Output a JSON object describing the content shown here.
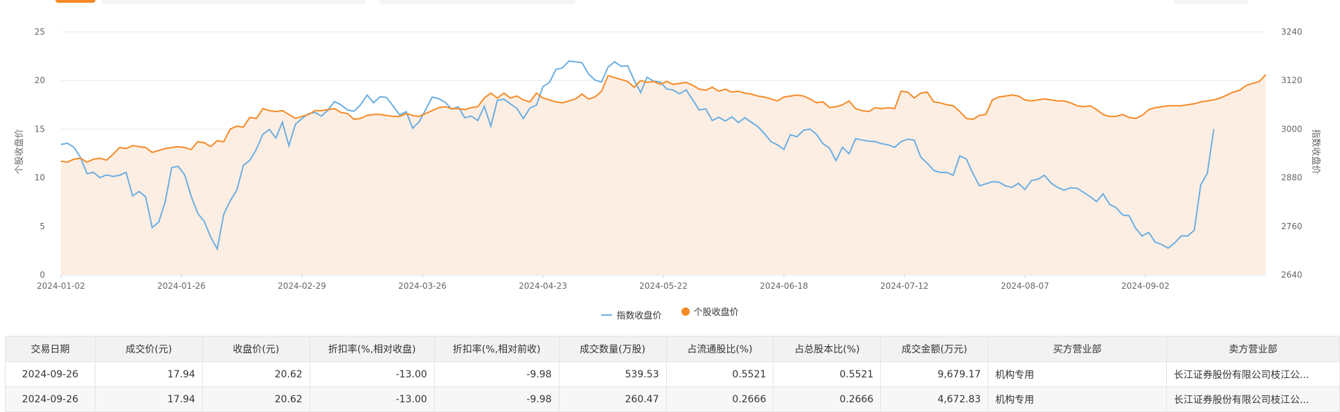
{
  "chart_data": {
    "type": "area",
    "x_labels": [
      "2024-01-02",
      "2024-01-26",
      "2024-02-29",
      "2024-03-26",
      "2024-04-23",
      "2024-05-22",
      "2024-06-18",
      "2024-07-12",
      "2024-08-07",
      "2024-09-02"
    ],
    "ylabel_left": "个股收盘价",
    "ylabel_right": "指数收盘价",
    "ylim_left": [
      0,
      25
    ],
    "ylim_right": [
      2640,
      3240
    ],
    "yticks_left": [
      "0",
      "5",
      "10",
      "15",
      "20",
      "25"
    ],
    "yticks_right": [
      "2640",
      "2760",
      "2880",
      "3000",
      "3120",
      "3240"
    ],
    "legend_position": "bottom-center",
    "series": [
      {
        "name": "指数收盘价",
        "axis": "right",
        "color": "#6aaee2",
        "values": [
          2962,
          2965,
          2955,
          2930,
          2890,
          2893,
          2880,
          2887,
          2883,
          2886,
          2893,
          2835,
          2846,
          2833,
          2757,
          2770,
          2820,
          2905,
          2908,
          2887,
          2834,
          2792,
          2772,
          2733,
          2704,
          2790,
          2823,
          2849,
          2910,
          2923,
          2950,
          2987,
          2999,
          2978,
          3017,
          2959,
          3012,
          3026,
          3038,
          3041,
          3032,
          3047,
          3068,
          3060,
          3047,
          3044,
          3060,
          3084,
          3065,
          3080,
          3078,
          3057,
          3035,
          3043,
          3002,
          3018,
          3048,
          3079,
          3075,
          3066,
          3049,
          3055,
          3028,
          3032,
          3021,
          3056,
          3007,
          3071,
          3074,
          3062,
          3051,
          3026,
          3052,
          3059,
          3105,
          3115,
          3147,
          3151,
          3168,
          3166,
          3164,
          3136,
          3121,
          3116,
          3153,
          3166,
          3155,
          3156,
          3121,
          3090,
          3128,
          3118,
          3116,
          3099,
          3096,
          3087,
          3097,
          3072,
          3047,
          3050,
          3021,
          3029,
          3020,
          3030,
          3016,
          3028,
          3017,
          3006,
          2989,
          2969,
          2961,
          2950,
          2986,
          2981,
          2997,
          3000,
          2987,
          2964,
          2953,
          2922,
          2955,
          2939,
          2976,
          2973,
          2970,
          2969,
          2964,
          2961,
          2955,
          2969,
          2975,
          2973,
          2931,
          2916,
          2898,
          2893,
          2893,
          2886,
          2934,
          2926,
          2891,
          2860,
          2865,
          2870,
          2869,
          2860,
          2856,
          2866,
          2851,
          2873,
          2876,
          2886,
          2867,
          2856,
          2849,
          2855,
          2854,
          2844,
          2833,
          2821,
          2840,
          2814,
          2806,
          2788,
          2786,
          2755,
          2736,
          2745,
          2721,
          2715,
          2706,
          2719,
          2736,
          2736,
          2750,
          2862,
          2891,
          3000
        ]
      },
      {
        "name": "个股收盘价",
        "axis": "left",
        "color": "#f58a26",
        "fill": "#fdeee3",
        "values": [
          11.7,
          11.6,
          11.9,
          12.0,
          11.6,
          11.9,
          12.0,
          11.8,
          12.4,
          13.1,
          13.0,
          13.3,
          13.2,
          13.1,
          12.6,
          12.8,
          13.0,
          13.1,
          13.2,
          13.1,
          12.9,
          13.7,
          13.6,
          13.2,
          13.8,
          13.7,
          15.0,
          15.3,
          15.2,
          16.2,
          16.1,
          17.1,
          16.9,
          16.8,
          16.9,
          16.5,
          16.1,
          16.3,
          16.5,
          16.9,
          16.9,
          17.0,
          17.1,
          16.7,
          16.6,
          16.0,
          16.1,
          16.4,
          16.5,
          16.5,
          16.4,
          16.3,
          16.3,
          16.6,
          16.4,
          16.3,
          16.6,
          16.9,
          17.2,
          17.3,
          17.1,
          17.1,
          17.0,
          17.2,
          17.3,
          18.2,
          18.7,
          18.2,
          18.7,
          18.2,
          18.4,
          18.0,
          17.8,
          18.7,
          18.2,
          18.0,
          17.8,
          17.7,
          17.9,
          18.1,
          18.6,
          18.1,
          18.3,
          18.9,
          20.5,
          20.3,
          20.1,
          19.9,
          19.3,
          20.0,
          19.8,
          19.9,
          19.6,
          19.9,
          19.6,
          19.7,
          19.8,
          19.5,
          19.1,
          19.0,
          19.3,
          18.9,
          19.1,
          18.8,
          18.9,
          18.7,
          18.6,
          18.4,
          18.3,
          18.1,
          17.9,
          18.3,
          18.4,
          18.5,
          18.4,
          18.1,
          17.7,
          17.8,
          17.2,
          17.3,
          17.5,
          17.9,
          17.1,
          16.9,
          16.8,
          17.2,
          17.1,
          17.2,
          17.1,
          18.9,
          18.8,
          18.2,
          18.7,
          18.8,
          17.8,
          17.7,
          17.5,
          17.4,
          16.8,
          16.1,
          16.0,
          16.4,
          16.5,
          18.0,
          18.3,
          18.4,
          18.5,
          18.4,
          18.0,
          17.9,
          18.0,
          18.1,
          18.0,
          17.9,
          17.9,
          17.7,
          17.4,
          17.3,
          17.4,
          17.0,
          16.5,
          16.3,
          16.3,
          16.5,
          16.2,
          16.1,
          16.4,
          17.0,
          17.2,
          17.3,
          17.4,
          17.4,
          17.4,
          17.5,
          17.6,
          17.8,
          17.9,
          18.0,
          18.2,
          18.5,
          18.8,
          19.0,
          19.5,
          19.7,
          19.9,
          20.62
        ]
      }
    ]
  },
  "table": {
    "headers": [
      "交易日期",
      "成交价(元)",
      "收盘价(元)",
      "折扣率(%,相对收盘)",
      "折扣率(%,相对前收)",
      "成交数量(万股)",
      "占流通股比(%)",
      "占总股本比(%)",
      "成交金额(万元)",
      "买方营业部",
      "卖方营业部"
    ],
    "rows": [
      [
        "2024-09-26",
        "17.94",
        "20.62",
        "-13.00",
        "-9.98",
        "539.53",
        "0.5521",
        "0.5521",
        "9,679.17",
        "机构专用",
        "长江证券股份有限公司枝江公..."
      ],
      [
        "2024-09-26",
        "17.94",
        "20.62",
        "-13.00",
        "-9.98",
        "260.47",
        "0.2666",
        "0.2666",
        "4,672.83",
        "机构专用",
        "长江证券股份有限公司枝江公..."
      ]
    ]
  }
}
